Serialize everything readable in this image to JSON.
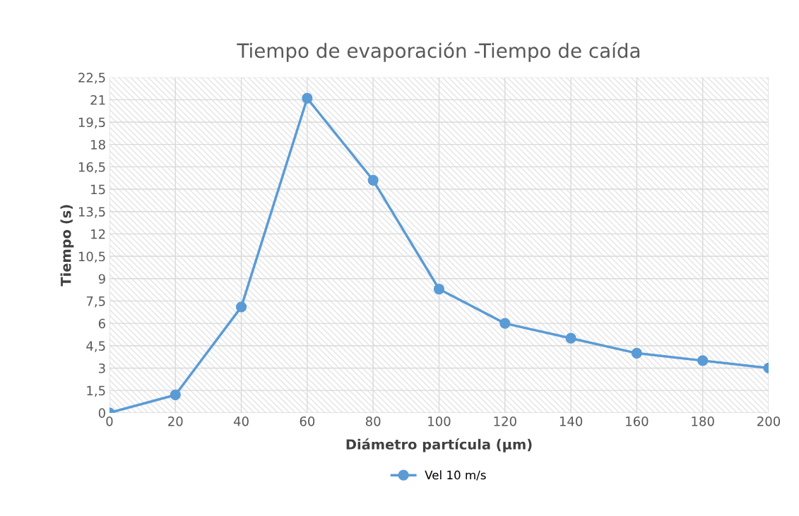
{
  "chart_data": {
    "type": "line",
    "title": "Tiempo de evaporación -Tiempo de caída",
    "xlabel": "Diámetro partícula (µm)",
    "ylabel": "Tiempo (s)",
    "x": [
      0,
      20,
      40,
      60,
      80,
      100,
      120,
      140,
      160,
      180,
      200
    ],
    "series": [
      {
        "name": "Vel 10 m/s",
        "color": "#5b9bd5",
        "values": [
          0,
          1.2,
          7.1,
          21.1,
          15.6,
          8.3,
          6.0,
          5.0,
          4.0,
          3.5,
          3.0
        ]
      }
    ],
    "xlim": [
      0,
      200
    ],
    "xticks": [
      0,
      20,
      40,
      60,
      80,
      100,
      120,
      140,
      160,
      180,
      200
    ],
    "ylim": [
      0,
      22.5
    ],
    "yticks": [
      {
        "value": 0,
        "label": "0"
      },
      {
        "value": 1.5,
        "label": "1,5"
      },
      {
        "value": 3,
        "label": "3"
      },
      {
        "value": 4.5,
        "label": "4,5"
      },
      {
        "value": 6,
        "label": "6"
      },
      {
        "value": 7.5,
        "label": "7,5"
      },
      {
        "value": 9,
        "label": "9"
      },
      {
        "value": 10.5,
        "label": "10,5"
      },
      {
        "value": 12,
        "label": "12"
      },
      {
        "value": 13.5,
        "label": "13,5"
      },
      {
        "value": 15,
        "label": "15"
      },
      {
        "value": 16.5,
        "label": "16,5"
      },
      {
        "value": 18,
        "label": "18"
      },
      {
        "value": 19.5,
        "label": "19,5"
      },
      {
        "value": 21,
        "label": "21"
      },
      {
        "value": 22.5,
        "label": "22,5"
      }
    ],
    "grid": true,
    "legend": "bottom",
    "marker": "circle",
    "line_style": "solid"
  }
}
